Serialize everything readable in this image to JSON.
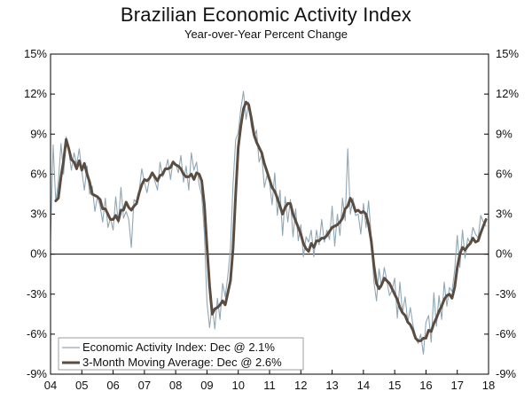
{
  "chart_data": {
    "type": "line",
    "title": "Brazilian Economic Activity Index",
    "subtitle": "Year-over-Year Percent Change",
    "xlabel": "",
    "ylabel": "",
    "ylim": [
      -9,
      15
    ],
    "xlim": [
      2004,
      2018
    ],
    "y_ticks": [
      "15%",
      "12%",
      "9%",
      "6%",
      "3%",
      "0%",
      "-3%",
      "-6%",
      "-9%"
    ],
    "y_tick_values": [
      15,
      12,
      9,
      6,
      3,
      0,
      -3,
      -6,
      -9
    ],
    "x_ticks": [
      "04",
      "05",
      "06",
      "07",
      "08",
      "09",
      "10",
      "11",
      "12",
      "13",
      "14",
      "15",
      "16",
      "17",
      "18"
    ],
    "x_tick_values": [
      2004,
      2005,
      2006,
      2007,
      2008,
      2009,
      2010,
      2011,
      2012,
      2013,
      2014,
      2015,
      2016,
      2017,
      2018
    ],
    "legend_position": "bottom-left",
    "colors": {
      "series1": "#8fa7b5",
      "series2": "#5a4c40",
      "zero_line": "#000000",
      "frame": "#000000"
    },
    "series": [
      {
        "name": "Economic Activity Index: Dec @ 2.1%",
        "x": [
          2004.0,
          2004.083,
          2004.167,
          2004.25,
          2004.333,
          2004.417,
          2004.5,
          2004.583,
          2004.667,
          2004.75,
          2004.833,
          2004.917,
          2005.0,
          2005.083,
          2005.167,
          2005.25,
          2005.333,
          2005.417,
          2005.5,
          2005.583,
          2005.667,
          2005.75,
          2005.833,
          2005.917,
          2006.0,
          2006.083,
          2006.167,
          2006.25,
          2006.333,
          2006.417,
          2006.5,
          2006.583,
          2006.667,
          2006.75,
          2006.833,
          2006.917,
          2007.0,
          2007.083,
          2007.167,
          2007.25,
          2007.333,
          2007.417,
          2007.5,
          2007.583,
          2007.667,
          2007.75,
          2007.833,
          2007.917,
          2008.0,
          2008.083,
          2008.167,
          2008.25,
          2008.333,
          2008.417,
          2008.5,
          2008.583,
          2008.667,
          2008.75,
          2008.833,
          2008.917,
          2009.0,
          2009.083,
          2009.167,
          2009.25,
          2009.333,
          2009.417,
          2009.5,
          2009.583,
          2009.667,
          2009.75,
          2009.833,
          2009.917,
          2010.0,
          2010.083,
          2010.167,
          2010.25,
          2010.333,
          2010.417,
          2010.5,
          2010.583,
          2010.667,
          2010.75,
          2010.833,
          2010.917,
          2011.0,
          2011.083,
          2011.167,
          2011.25,
          2011.333,
          2011.417,
          2011.5,
          2011.583,
          2011.667,
          2011.75,
          2011.833,
          2011.917,
          2012.0,
          2012.083,
          2012.167,
          2012.25,
          2012.333,
          2012.417,
          2012.5,
          2012.583,
          2012.667,
          2012.75,
          2012.833,
          2012.917,
          2013.0,
          2013.083,
          2013.167,
          2013.25,
          2013.333,
          2013.417,
          2013.5,
          2013.583,
          2013.667,
          2013.75,
          2013.833,
          2013.917,
          2014.0,
          2014.083,
          2014.167,
          2014.25,
          2014.333,
          2014.417,
          2014.5,
          2014.583,
          2014.667,
          2014.75,
          2014.833,
          2014.917,
          2015.0,
          2015.083,
          2015.167,
          2015.25,
          2015.333,
          2015.417,
          2015.5,
          2015.583,
          2015.667,
          2015.75,
          2015.833,
          2015.917,
          2016.0,
          2016.083,
          2016.167,
          2016.25,
          2016.333,
          2016.417,
          2016.5,
          2016.583,
          2016.667,
          2016.75,
          2016.833,
          2016.917,
          2017.0,
          2017.083,
          2017.167,
          2017.25,
          2017.333,
          2017.417,
          2017.5,
          2017.583,
          2017.667,
          2017.75,
          2017.833,
          2017.917
        ],
        "values": [
          1.0,
          8.2,
          3.9,
          5.4,
          8.3,
          6.0,
          8.8,
          7.7,
          6.3,
          7.6,
          6.7,
          7.9,
          6.2,
          4.8,
          6.6,
          4.5,
          5.1,
          3.2,
          4.3,
          3.6,
          2.4,
          4.2,
          2.0,
          2.7,
          1.8,
          4.3,
          2.3,
          5.0,
          2.7,
          3.2,
          2.6,
          0.5,
          4.1,
          3.9,
          4.8,
          6.4,
          5.4,
          4.6,
          5.7,
          6.1,
          5.5,
          4.8,
          6.9,
          5.8,
          6.3,
          7.1,
          5.6,
          7.0,
          6.8,
          6.1,
          7.4,
          5.4,
          6.6,
          4.8,
          7.6,
          6.3,
          6.9,
          5.2,
          4.4,
          1.6,
          -3.6,
          -5.5,
          -3.8,
          -5.6,
          -3.3,
          -4.9,
          -2.2,
          -3.2,
          -1.6,
          0.4,
          5.2,
          8.6,
          9.1,
          10.9,
          12.2,
          10.1,
          11.4,
          9.6,
          8.7,
          9.3,
          6.9,
          7.5,
          5.0,
          5.9,
          5.4,
          3.7,
          6.1,
          2.9,
          4.8,
          1.4,
          4.3,
          2.4,
          4.1,
          1.3,
          3.4,
          1.0,
          2.2,
          -0.2,
          1.3,
          0.9,
          1.8,
          -0.2,
          1.8,
          0.7,
          2.6,
          0.9,
          1.8,
          1.1,
          3.6,
          0.6,
          3.0,
          1.4,
          4.2,
          2.5,
          7.9,
          3.0,
          4.2,
          2.9,
          3.0,
          1.5,
          3.8,
          2.0,
          4.0,
          1.3,
          -2.0,
          -3.5,
          -1.1,
          -2.5,
          -1.0,
          -2.0,
          -3.1,
          -2.7,
          -1.8,
          -4.8,
          -2.1,
          -4.4,
          -3.2,
          -5.1,
          -4.0,
          -5.3,
          -6.2,
          -6.7,
          -6.0,
          -7.5,
          -5.1,
          -4.6,
          -6.6,
          -2.9,
          -5.4,
          -3.1,
          -4.9,
          -2.1,
          -3.9,
          -2.5,
          -2.8,
          -1.2,
          1.4,
          -1.0,
          1.8,
          -0.3,
          1.2,
          0.8,
          2.0,
          1.5,
          1.2,
          2.9,
          2.4,
          2.1
        ]
      },
      {
        "name": "3-Month Moving Average: Dec @ 2.6%",
        "x": [
          2004.167,
          2004.25,
          2004.333,
          2004.417,
          2004.5,
          2004.583,
          2004.667,
          2004.75,
          2004.833,
          2004.917,
          2005.0,
          2005.083,
          2005.167,
          2005.25,
          2005.333,
          2005.417,
          2005.5,
          2005.583,
          2005.667,
          2005.75,
          2005.833,
          2005.917,
          2006.0,
          2006.083,
          2006.167,
          2006.25,
          2006.333,
          2006.417,
          2006.5,
          2006.583,
          2006.667,
          2006.75,
          2006.833,
          2006.917,
          2007.0,
          2007.083,
          2007.167,
          2007.25,
          2007.333,
          2007.417,
          2007.5,
          2007.583,
          2007.667,
          2007.75,
          2007.833,
          2007.917,
          2008.0,
          2008.083,
          2008.167,
          2008.25,
          2008.333,
          2008.417,
          2008.5,
          2008.583,
          2008.667,
          2008.75,
          2008.833,
          2008.917,
          2009.0,
          2009.083,
          2009.167,
          2009.25,
          2009.333,
          2009.417,
          2009.5,
          2009.583,
          2009.667,
          2009.75,
          2009.833,
          2009.917,
          2010.0,
          2010.083,
          2010.167,
          2010.25,
          2010.333,
          2010.417,
          2010.5,
          2010.583,
          2010.667,
          2010.75,
          2010.833,
          2010.917,
          2011.0,
          2011.083,
          2011.167,
          2011.25,
          2011.333,
          2011.417,
          2011.5,
          2011.583,
          2011.667,
          2011.75,
          2011.833,
          2011.917,
          2012.0,
          2012.083,
          2012.167,
          2012.25,
          2012.333,
          2012.417,
          2012.5,
          2012.583,
          2012.667,
          2012.75,
          2012.833,
          2012.917,
          2013.0,
          2013.083,
          2013.167,
          2013.25,
          2013.333,
          2013.417,
          2013.5,
          2013.583,
          2013.667,
          2013.75,
          2013.833,
          2013.917,
          2014.0,
          2014.083,
          2014.167,
          2014.25,
          2014.333,
          2014.417,
          2014.5,
          2014.583,
          2014.667,
          2014.75,
          2014.833,
          2014.917,
          2015.0,
          2015.083,
          2015.167,
          2015.25,
          2015.333,
          2015.417,
          2015.5,
          2015.583,
          2015.667,
          2015.75,
          2015.833,
          2015.917,
          2016.0,
          2016.083,
          2016.167,
          2016.25,
          2016.333,
          2016.417,
          2016.5,
          2016.583,
          2016.667,
          2016.75,
          2016.833,
          2016.917,
          2017.0,
          2017.083,
          2017.167,
          2017.25,
          2017.333,
          2017.417,
          2017.5,
          2017.583,
          2017.667,
          2017.75,
          2017.833,
          2017.917
        ],
        "values": [
          4.0,
          4.2,
          5.8,
          7.0,
          8.6,
          7.9,
          7.1,
          6.9,
          6.4,
          7.0,
          6.3,
          6.8,
          6.0,
          5.4,
          4.5,
          4.4,
          4.3,
          4.1,
          3.4,
          3.4,
          3.0,
          2.6,
          2.6,
          2.9,
          2.5,
          3.3,
          3.3,
          3.9,
          3.5,
          3.3,
          3.6,
          3.8,
          4.6,
          5.2,
          5.6,
          5.5,
          5.7,
          6.1,
          5.8,
          5.5,
          5.9,
          6.0,
          6.4,
          6.4,
          6.5,
          6.9,
          6.7,
          6.6,
          6.4,
          6.0,
          5.8,
          5.8,
          6.0,
          5.6,
          6.1,
          6.0,
          5.5,
          3.7,
          0.6,
          -2.4,
          -4.5,
          -4.1,
          -4.0,
          -3.8,
          -3.5,
          -3.8,
          -2.9,
          -2.0,
          0.4,
          4.5,
          8.0,
          9.6,
          10.9,
          11.4,
          11.2,
          10.2,
          9.0,
          8.4,
          8.0,
          7.6,
          6.8,
          6.2,
          5.6,
          5.0,
          4.7,
          4.2,
          3.6,
          3.0,
          3.5,
          3.8,
          3.8,
          3.0,
          2.5,
          2.0,
          1.5,
          0.8,
          0.4,
          0.2,
          0.8,
          0.5,
          1.0,
          1.0,
          1.2,
          1.2,
          1.4,
          1.7,
          2.0,
          2.1,
          2.2,
          2.4,
          2.7,
          3.4,
          3.6,
          4.2,
          3.8,
          3.2,
          3.3,
          3.1,
          3.2,
          3.0,
          2.2,
          1.0,
          -0.8,
          -2.2,
          -2.6,
          -2.3,
          -1.8,
          -2.0,
          -2.2,
          -2.6,
          -3.0,
          -3.4,
          -4.0,
          -4.4,
          -4.6,
          -5.1,
          -5.3,
          -5.7,
          -6.3,
          -6.5,
          -6.5,
          -6.3,
          -6.3,
          -5.7,
          -5.8,
          -5.2,
          -4.8,
          -4.3,
          -3.9,
          -3.4,
          -3.1,
          -3.0,
          -3.3,
          -2.5,
          -1.0,
          0.0,
          0.5,
          0.3,
          0.6,
          0.8,
          1.2,
          0.9,
          1.0,
          1.6,
          2.1,
          2.6
        ]
      }
    ]
  }
}
